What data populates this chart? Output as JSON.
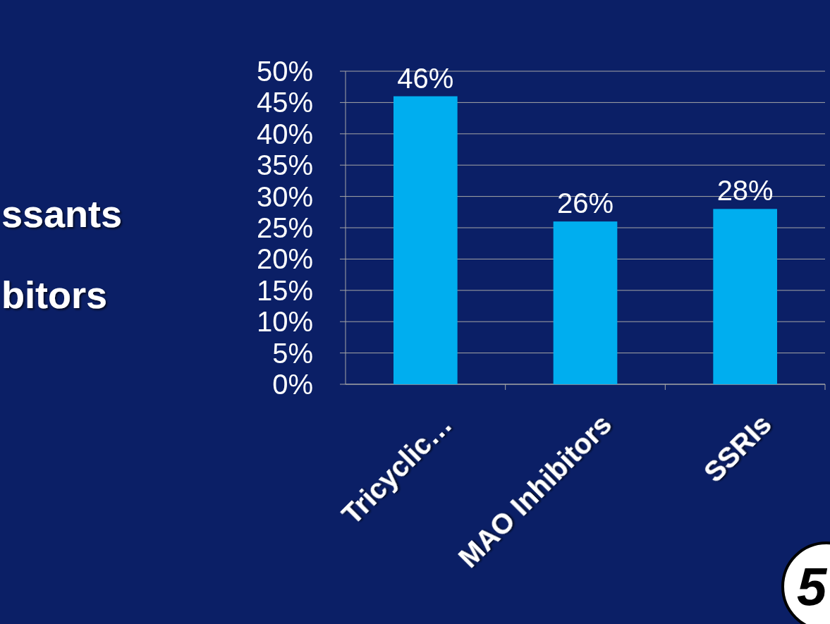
{
  "chart_data": {
    "type": "bar",
    "categories": [
      "Tricyclic…",
      "MAO Inhibitors",
      "SSRIs"
    ],
    "values": [
      46,
      26,
      28
    ],
    "color": "#00aeef",
    "value_labels": [
      "46%",
      "26%",
      "28%"
    ],
    "ylim": [
      0,
      50
    ],
    "yticks": [
      {
        "value": 0,
        "label": "0%"
      },
      {
        "value": 5,
        "label": "5%"
      },
      {
        "value": 10,
        "label": "10%"
      },
      {
        "value": 15,
        "label": "15%"
      },
      {
        "value": 20,
        "label": "20%"
      },
      {
        "value": 25,
        "label": "25%"
      },
      {
        "value": 30,
        "label": "30%"
      },
      {
        "value": 35,
        "label": "35%"
      },
      {
        "value": 40,
        "label": "40%"
      },
      {
        "value": 45,
        "label": "45%"
      },
      {
        "value": 50,
        "label": "50%"
      }
    ],
    "grid": "y",
    "annotations": [
      "ssants",
      "bitors",
      "5"
    ]
  }
}
